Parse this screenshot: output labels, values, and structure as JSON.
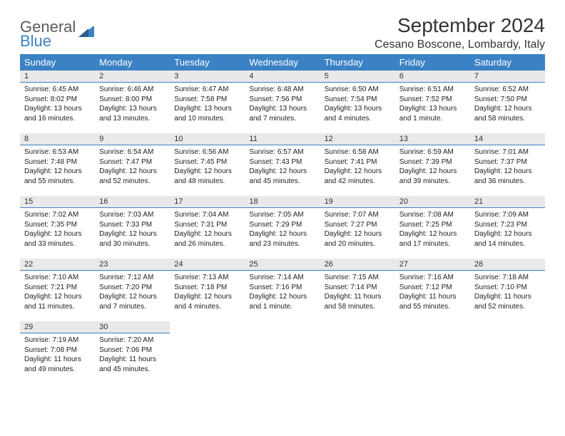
{
  "branding": {
    "word1": "General",
    "word2": "Blue",
    "word1_color": "#5a5a5a",
    "word2_color": "#3b82c4"
  },
  "title": "September 2024",
  "location": "Cesano Boscone, Lombardy, Italy",
  "header_bg": "#3b82c4",
  "header_fg": "#ffffff",
  "daynum_bg": "#e9e9e9",
  "daynum_border": "#3b82c4",
  "weekdays": [
    "Sunday",
    "Monday",
    "Tuesday",
    "Wednesday",
    "Thursday",
    "Friday",
    "Saturday"
  ],
  "days": [
    {
      "n": "1",
      "sr": "Sunrise: 6:45 AM",
      "ss": "Sunset: 8:02 PM",
      "d1": "Daylight: 13 hours",
      "d2": "and 16 minutes."
    },
    {
      "n": "2",
      "sr": "Sunrise: 6:46 AM",
      "ss": "Sunset: 8:00 PM",
      "d1": "Daylight: 13 hours",
      "d2": "and 13 minutes."
    },
    {
      "n": "3",
      "sr": "Sunrise: 6:47 AM",
      "ss": "Sunset: 7:58 PM",
      "d1": "Daylight: 13 hours",
      "d2": "and 10 minutes."
    },
    {
      "n": "4",
      "sr": "Sunrise: 6:48 AM",
      "ss": "Sunset: 7:56 PM",
      "d1": "Daylight: 13 hours",
      "d2": "and 7 minutes."
    },
    {
      "n": "5",
      "sr": "Sunrise: 6:50 AM",
      "ss": "Sunset: 7:54 PM",
      "d1": "Daylight: 13 hours",
      "d2": "and 4 minutes."
    },
    {
      "n": "6",
      "sr": "Sunrise: 6:51 AM",
      "ss": "Sunset: 7:52 PM",
      "d1": "Daylight: 13 hours",
      "d2": "and 1 minute."
    },
    {
      "n": "7",
      "sr": "Sunrise: 6:52 AM",
      "ss": "Sunset: 7:50 PM",
      "d1": "Daylight: 12 hours",
      "d2": "and 58 minutes."
    },
    {
      "n": "8",
      "sr": "Sunrise: 6:53 AM",
      "ss": "Sunset: 7:48 PM",
      "d1": "Daylight: 12 hours",
      "d2": "and 55 minutes."
    },
    {
      "n": "9",
      "sr": "Sunrise: 6:54 AM",
      "ss": "Sunset: 7:47 PM",
      "d1": "Daylight: 12 hours",
      "d2": "and 52 minutes."
    },
    {
      "n": "10",
      "sr": "Sunrise: 6:56 AM",
      "ss": "Sunset: 7:45 PM",
      "d1": "Daylight: 12 hours",
      "d2": "and 48 minutes."
    },
    {
      "n": "11",
      "sr": "Sunrise: 6:57 AM",
      "ss": "Sunset: 7:43 PM",
      "d1": "Daylight: 12 hours",
      "d2": "and 45 minutes."
    },
    {
      "n": "12",
      "sr": "Sunrise: 6:58 AM",
      "ss": "Sunset: 7:41 PM",
      "d1": "Daylight: 12 hours",
      "d2": "and 42 minutes."
    },
    {
      "n": "13",
      "sr": "Sunrise: 6:59 AM",
      "ss": "Sunset: 7:39 PM",
      "d1": "Daylight: 12 hours",
      "d2": "and 39 minutes."
    },
    {
      "n": "14",
      "sr": "Sunrise: 7:01 AM",
      "ss": "Sunset: 7:37 PM",
      "d1": "Daylight: 12 hours",
      "d2": "and 36 minutes."
    },
    {
      "n": "15",
      "sr": "Sunrise: 7:02 AM",
      "ss": "Sunset: 7:35 PM",
      "d1": "Daylight: 12 hours",
      "d2": "and 33 minutes."
    },
    {
      "n": "16",
      "sr": "Sunrise: 7:03 AM",
      "ss": "Sunset: 7:33 PM",
      "d1": "Daylight: 12 hours",
      "d2": "and 30 minutes."
    },
    {
      "n": "17",
      "sr": "Sunrise: 7:04 AM",
      "ss": "Sunset: 7:31 PM",
      "d1": "Daylight: 12 hours",
      "d2": "and 26 minutes."
    },
    {
      "n": "18",
      "sr": "Sunrise: 7:05 AM",
      "ss": "Sunset: 7:29 PM",
      "d1": "Daylight: 12 hours",
      "d2": "and 23 minutes."
    },
    {
      "n": "19",
      "sr": "Sunrise: 7:07 AM",
      "ss": "Sunset: 7:27 PM",
      "d1": "Daylight: 12 hours",
      "d2": "and 20 minutes."
    },
    {
      "n": "20",
      "sr": "Sunrise: 7:08 AM",
      "ss": "Sunset: 7:25 PM",
      "d1": "Daylight: 12 hours",
      "d2": "and 17 minutes."
    },
    {
      "n": "21",
      "sr": "Sunrise: 7:09 AM",
      "ss": "Sunset: 7:23 PM",
      "d1": "Daylight: 12 hours",
      "d2": "and 14 minutes."
    },
    {
      "n": "22",
      "sr": "Sunrise: 7:10 AM",
      "ss": "Sunset: 7:21 PM",
      "d1": "Daylight: 12 hours",
      "d2": "and 11 minutes."
    },
    {
      "n": "23",
      "sr": "Sunrise: 7:12 AM",
      "ss": "Sunset: 7:20 PM",
      "d1": "Daylight: 12 hours",
      "d2": "and 7 minutes."
    },
    {
      "n": "24",
      "sr": "Sunrise: 7:13 AM",
      "ss": "Sunset: 7:18 PM",
      "d1": "Daylight: 12 hours",
      "d2": "and 4 minutes."
    },
    {
      "n": "25",
      "sr": "Sunrise: 7:14 AM",
      "ss": "Sunset: 7:16 PM",
      "d1": "Daylight: 12 hours",
      "d2": "and 1 minute."
    },
    {
      "n": "26",
      "sr": "Sunrise: 7:15 AM",
      "ss": "Sunset: 7:14 PM",
      "d1": "Daylight: 11 hours",
      "d2": "and 58 minutes."
    },
    {
      "n": "27",
      "sr": "Sunrise: 7:16 AM",
      "ss": "Sunset: 7:12 PM",
      "d1": "Daylight: 11 hours",
      "d2": "and 55 minutes."
    },
    {
      "n": "28",
      "sr": "Sunrise: 7:18 AM",
      "ss": "Sunset: 7:10 PM",
      "d1": "Daylight: 11 hours",
      "d2": "and 52 minutes."
    },
    {
      "n": "29",
      "sr": "Sunrise: 7:19 AM",
      "ss": "Sunset: 7:08 PM",
      "d1": "Daylight: 11 hours",
      "d2": "and 49 minutes."
    },
    {
      "n": "30",
      "sr": "Sunrise: 7:20 AM",
      "ss": "Sunset: 7:06 PM",
      "d1": "Daylight: 11 hours",
      "d2": "and 45 minutes."
    }
  ]
}
